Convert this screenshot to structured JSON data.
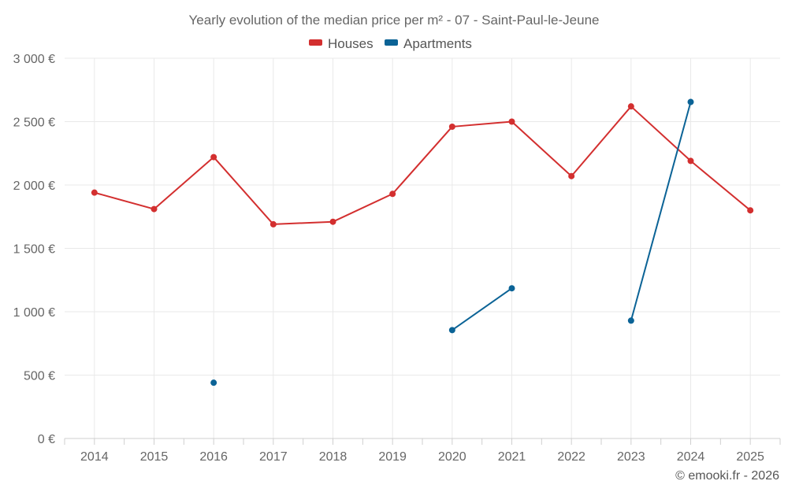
{
  "chart_data": {
    "type": "line",
    "title": "Yearly evolution of the median price per m² - 07 - Saint-Paul-le-Jeune",
    "xlabel": "",
    "ylabel": "",
    "categories": [
      "2014",
      "2015",
      "2016",
      "2017",
      "2018",
      "2019",
      "2020",
      "2021",
      "2022",
      "2023",
      "2024",
      "2025"
    ],
    "ylim": [
      0,
      3000
    ],
    "y_ticks": [
      0,
      500,
      1000,
      1500,
      2000,
      2500,
      3000
    ],
    "y_tick_labels": [
      "0 €",
      "500 €",
      "1 000 €",
      "1 500 €",
      "2 000 €",
      "2 500 €",
      "3 000 €"
    ],
    "grid": true,
    "legend_position": "top-center",
    "series": [
      {
        "name": "Houses",
        "color": "#d32f2f",
        "values": [
          1940,
          1810,
          2220,
          1690,
          1710,
          1930,
          2460,
          2500,
          2070,
          2620,
          2190,
          1800
        ]
      },
      {
        "name": "Apartments",
        "color": "#0b6396",
        "values": [
          null,
          null,
          440,
          null,
          null,
          null,
          855,
          1185,
          null,
          930,
          2655,
          null
        ]
      }
    ],
    "credit": "© emooki.fr - 2026"
  }
}
